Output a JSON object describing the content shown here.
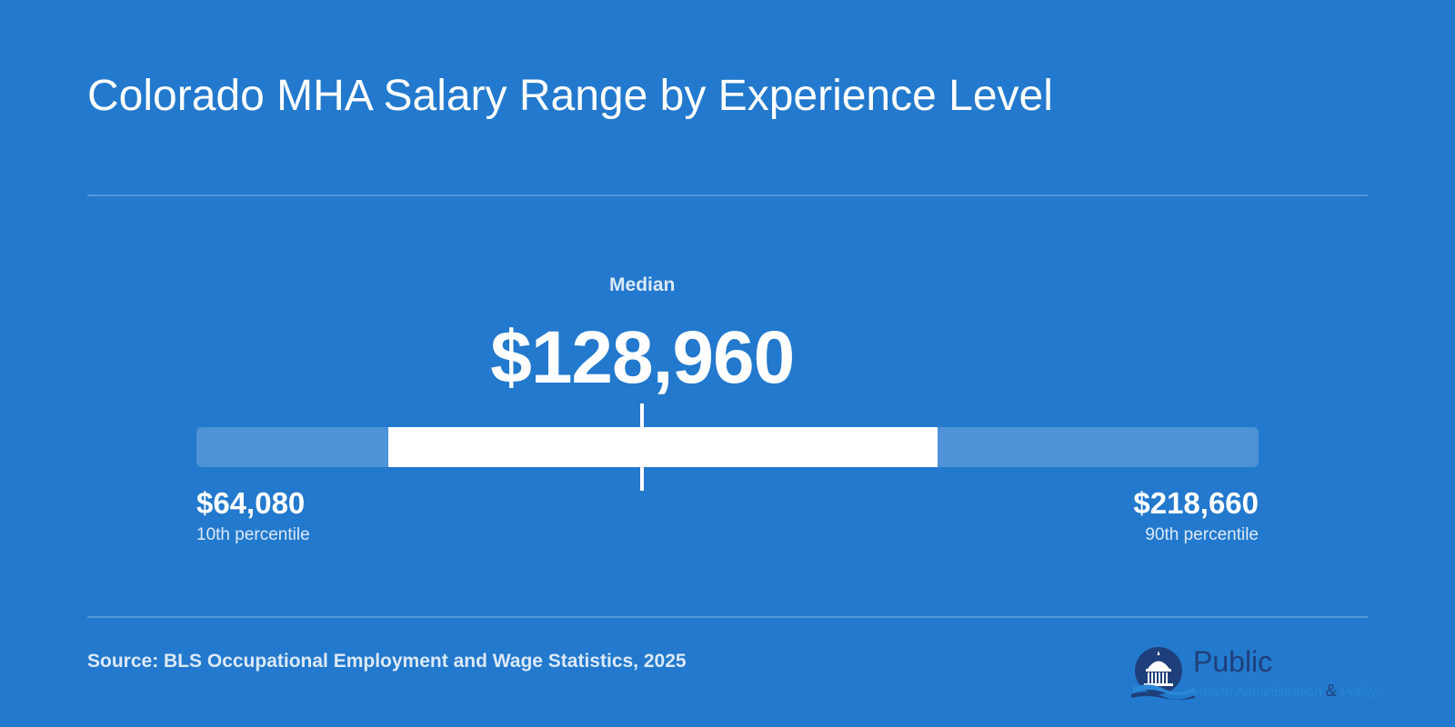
{
  "title": "Colorado MHA Salary Range by Experience Level",
  "chart_data": {
    "type": "range",
    "title": "Colorado MHA Salary Range by Experience Level",
    "currency": "USD",
    "median_label": "Median",
    "median": 128960,
    "median_display": "$128,960",
    "p10": 64080,
    "p10_display": "$64,080",
    "p10_label": "10th percentile",
    "p90": 218660,
    "p90_display": "$218,660",
    "p90_label": "90th percentile",
    "p25": 92000,
    "p75": 172000
  },
  "source": "Source: BLS Occupational Employment and Wage Statistics, 2025",
  "logo": {
    "word": "Public",
    "tagline_pre": "Health Administration",
    "amp": "&",
    "tagline_post": "Policy"
  },
  "colors": {
    "background": "#2279cd",
    "bar_fill": "#ffffff",
    "track": "rgba(255,255,255,0.2)",
    "logo_navy": "#1f3f7a",
    "logo_blue": "#2a86d6"
  }
}
